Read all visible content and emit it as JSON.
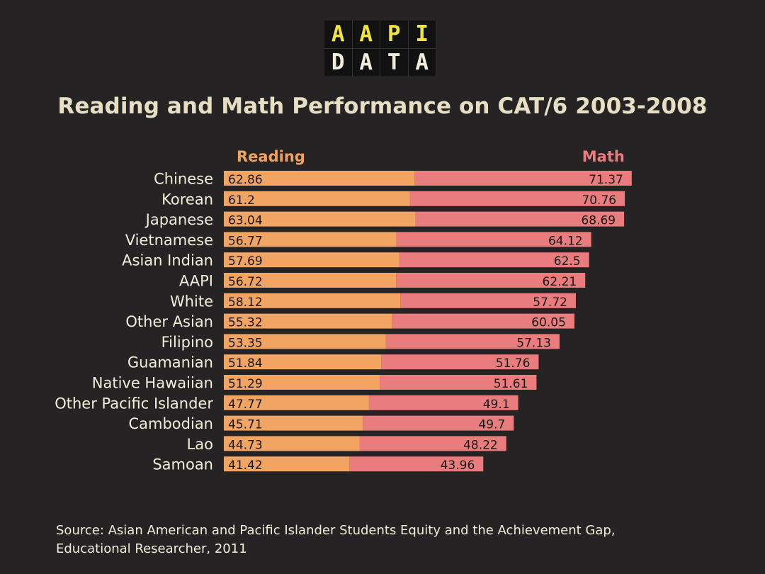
{
  "logo": {
    "top_letters": [
      "A",
      "A",
      "P",
      "I"
    ],
    "bottom_letters": [
      "D",
      "A",
      "T",
      "A"
    ]
  },
  "title": "Reading and Math Performance on CAT/6 2003-2008",
  "source": {
    "line1": "Source:  Asian American and Pacific Islander Students Equity and the Achievement Gap,",
    "line2": "Educational Researcher, 2011"
  },
  "colors": {
    "background": "#252323",
    "reading": "#f2a462",
    "math": "#e97c7d",
    "reading_label": "#f0a35c",
    "math_label": "#e97c7d",
    "logo_yellow": "#f1e43f",
    "text": "#f3eedc"
  },
  "chart_data": {
    "type": "bar",
    "orientation": "horizontal",
    "stacked": true,
    "title": "Reading and Math Performance on CAT/6 2003-2008",
    "legend_position": "top",
    "grid": false,
    "categories": [
      "Chinese",
      "Korean",
      "Japanese",
      "Vietnamese",
      "Asian Indian",
      "AAPI",
      "White",
      "Other Asian",
      "Filipino",
      "Guamanian",
      "Native Hawaiian",
      "Other Pacific Islander",
      "Cambodian",
      "Lao",
      "Samoan"
    ],
    "series": [
      {
        "name": "Reading",
        "values": [
          62.86,
          61.2,
          63.04,
          56.77,
          57.69,
          56.72,
          58.12,
          55.32,
          53.35,
          51.84,
          51.29,
          47.77,
          45.71,
          44.73,
          41.42
        ],
        "labels": [
          "62.86",
          "61.2",
          "63.04",
          "56.77",
          "57.69",
          "56.72",
          "58.12",
          "55.32",
          "53.35",
          "51.84",
          "51.29",
          "47.77",
          "45.71",
          "44.73",
          "41.42"
        ]
      },
      {
        "name": "Math",
        "values": [
          71.37,
          70.76,
          68.69,
          64.12,
          62.5,
          62.21,
          57.72,
          60.05,
          57.13,
          51.76,
          51.61,
          49.1,
          49.7,
          48.22,
          43.96
        ],
        "labels": [
          "71.37",
          "70.76",
          "68.69",
          "64.12",
          "62.5",
          "62.21",
          "57.72",
          "60.05",
          "57.13",
          "51.76",
          "51.61",
          "49.1",
          "49.7",
          "48.22",
          "43.96"
        ]
      }
    ]
  }
}
